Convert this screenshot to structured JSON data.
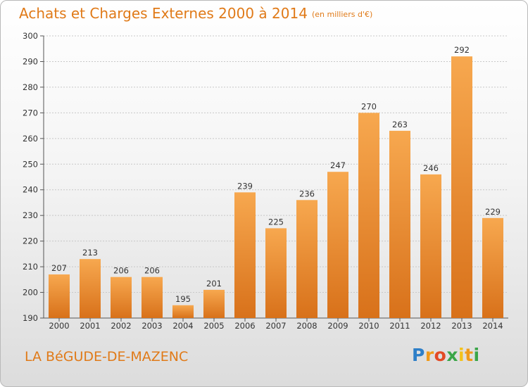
{
  "header": {
    "title": "Achats et Charges Externes 2000 à 2014",
    "unit": "(en milliers d'€)"
  },
  "footer": {
    "commune": "LA BéGUDE-DE-MAZENC",
    "logo_parts": [
      "P",
      "r",
      "o",
      "x",
      "i",
      "t",
      "i"
    ]
  },
  "colors": {
    "bar_light": "#f7a84f",
    "bar_dark": "#d8711a",
    "title": "#e07a18",
    "grid": "#c8c8c8",
    "axis": "#555555"
  },
  "chart_data": {
    "type": "bar",
    "title": "Achats et Charges Externes 2000 à 2014",
    "subtitle": "(en milliers d'€)",
    "categories": [
      "2000",
      "2001",
      "2002",
      "2003",
      "2004",
      "2005",
      "2006",
      "2007",
      "2008",
      "2009",
      "2010",
      "2011",
      "2012",
      "2013",
      "2014"
    ],
    "values": [
      207,
      213,
      206,
      206,
      195,
      201,
      239,
      225,
      236,
      247,
      270,
      263,
      246,
      292,
      229
    ],
    "ylim": [
      190,
      300
    ],
    "yticks": [
      190,
      200,
      210,
      220,
      230,
      240,
      250,
      260,
      270,
      280,
      290,
      300
    ],
    "grid": "horizontal",
    "data_labels": true
  }
}
